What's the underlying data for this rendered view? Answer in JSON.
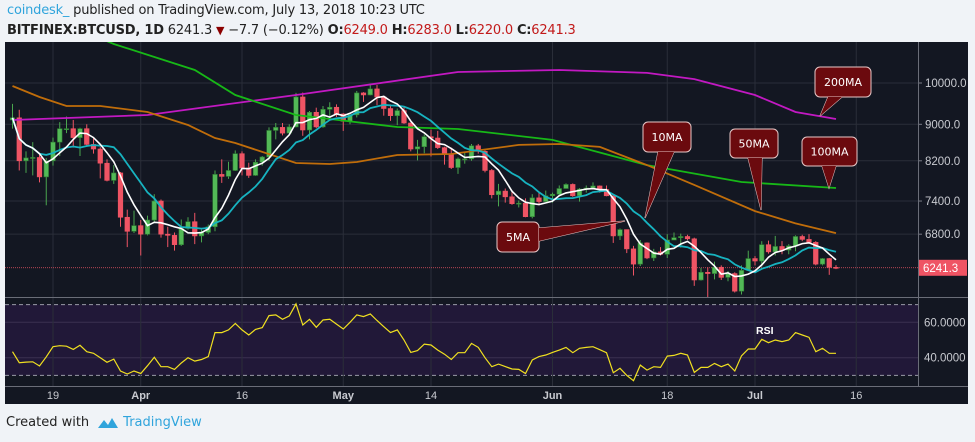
{
  "header": {
    "author": "coindesk_",
    "published": "published on TradingView.com, July 13, 2018 10:23 UTC",
    "symbol": "BITFINEX:BTCUSD, 1D",
    "last": "6241.3",
    "change": "−7.7 (−0.12%)",
    "o_label": "O:",
    "o": "6249.0",
    "h_label": "H:",
    "h": "6283.0",
    "l_label": "L:",
    "l": "6220.0",
    "c_label": "C:",
    "c": "6241.3"
  },
  "footer": {
    "created_with": "Created with",
    "brand": "TradingView"
  },
  "colors": {
    "bg": "#131722",
    "up": "#53b957",
    "down": "#ef5464",
    "ma5": "#ffffff",
    "ma10": "#17b3c0",
    "ma50": "#c06d0a",
    "ma100": "#17b817",
    "ma200": "#c219c2",
    "rsi": "#f0e020",
    "rsi_band": "#211838",
    "callout": "#6b0a0e",
    "last_price": "#ef5464"
  },
  "chart_data": {
    "type": "candlestick",
    "y_scale": "log",
    "y_ticks": [
      "10000.0",
      "9000.0",
      "8200.0",
      "7400.0",
      "6800.0"
    ],
    "y_tick_values": [
      10000,
      9000,
      8200,
      7400,
      6800
    ],
    "last_price_label": "6241.3",
    "x_ticks": [
      {
        "date": "03-19",
        "label": "19",
        "bold": false
      },
      {
        "date": "04-01",
        "label": "Apr",
        "bold": true
      },
      {
        "date": "04-16",
        "label": "16",
        "bold": false
      },
      {
        "date": "05-01",
        "label": "May",
        "bold": true
      },
      {
        "date": "05-14",
        "label": "14",
        "bold": false
      },
      {
        "date": "06-01",
        "label": "Jun",
        "bold": true
      },
      {
        "date": "06-18",
        "label": "18",
        "bold": false
      },
      {
        "date": "07-01",
        "label": "Jul",
        "bold": true
      },
      {
        "date": "07-16",
        "label": "16",
        "bold": false
      }
    ],
    "candles": [
      [
        "03-13",
        9100,
        9480,
        8900,
        9150
      ],
      [
        "03-14",
        9150,
        9340,
        8000,
        8200
      ],
      [
        "03-15",
        8200,
        8400,
        7950,
        8260
      ],
      [
        "03-16",
        8260,
        8600,
        7900,
        8270
      ],
      [
        "03-17",
        8270,
        8350,
        7760,
        7870
      ],
      [
        "03-18",
        7870,
        8260,
        7320,
        8200
      ],
      [
        "03-19",
        8200,
        8700,
        8100,
        8600
      ],
      [
        "03-20",
        8600,
        9050,
        8300,
        8900
      ],
      [
        "03-21",
        8900,
        9180,
        8800,
        8900
      ],
      [
        "03-22",
        8900,
        9100,
        8480,
        8700
      ],
      [
        "03-23",
        8700,
        8920,
        8300,
        8900
      ],
      [
        "03-24",
        8900,
        9000,
        8500,
        8550
      ],
      [
        "03-25",
        8550,
        8680,
        8350,
        8450
      ],
      [
        "03-26",
        8450,
        8490,
        7840,
        8150
      ],
      [
        "03-27",
        8150,
        8230,
        7780,
        7800
      ],
      [
        "03-28",
        7800,
        8110,
        7730,
        7950
      ],
      [
        "03-29",
        7950,
        7970,
        6930,
        7100
      ],
      [
        "03-30",
        7100,
        7240,
        6580,
        6850
      ],
      [
        "03-31",
        6850,
        7220,
        6820,
        6950
      ],
      [
        "04-01",
        6950,
        7050,
        6440,
        6800
      ],
      [
        "04-02",
        6800,
        7130,
        6780,
        7050
      ],
      [
        "04-03",
        7050,
        7530,
        7010,
        7400
      ],
      [
        "04-04",
        7400,
        7430,
        6740,
        6800
      ],
      [
        "04-05",
        6800,
        6930,
        6580,
        6780
      ],
      [
        "04-06",
        6780,
        6830,
        6520,
        6620
      ],
      [
        "04-07",
        6620,
        7060,
        6600,
        6900
      ],
      [
        "04-08",
        6900,
        7100,
        6880,
        7020
      ],
      [
        "04-09",
        7020,
        7180,
        6630,
        6770
      ],
      [
        "04-10",
        6770,
        6880,
        6660,
        6830
      ],
      [
        "04-11",
        6830,
        6970,
        6800,
        6930
      ],
      [
        "04-12",
        6930,
        8000,
        6850,
        7920
      ],
      [
        "04-13",
        7920,
        8230,
        7750,
        7880
      ],
      [
        "04-14",
        7880,
        8180,
        7830,
        8000
      ],
      [
        "04-15",
        8000,
        8420,
        7990,
        8350
      ],
      [
        "04-16",
        8350,
        8400,
        7900,
        8050
      ],
      [
        "04-17",
        8050,
        8160,
        7850,
        7900
      ],
      [
        "04-18",
        7900,
        8230,
        7890,
        8170
      ],
      [
        "04-19",
        8170,
        8300,
        8100,
        8280
      ],
      [
        "04-20",
        8280,
        8930,
        8200,
        8860
      ],
      [
        "04-21",
        8860,
        9030,
        8660,
        8930
      ],
      [
        "04-22",
        8930,
        9030,
        8750,
        8800
      ],
      [
        "04-23",
        8800,
        9000,
        8790,
        8940
      ],
      [
        "04-24",
        8940,
        9750,
        8930,
        9650
      ],
      [
        "04-25",
        9650,
        9760,
        8740,
        8870
      ],
      [
        "04-26",
        8870,
        9310,
        8660,
        9280
      ],
      [
        "04-27",
        9280,
        9390,
        8910,
        8940
      ],
      [
        "04-28",
        8940,
        9430,
        8920,
        9350
      ],
      [
        "04-29",
        9350,
        9520,
        9180,
        9400
      ],
      [
        "04-30",
        9400,
        9470,
        9170,
        9240
      ],
      [
        "05-01",
        9240,
        9260,
        8850,
        9070
      ],
      [
        "05-02",
        9070,
        9260,
        9000,
        9220
      ],
      [
        "05-03",
        9220,
        9800,
        9160,
        9750
      ],
      [
        "05-04",
        9750,
        9770,
        9530,
        9700
      ],
      [
        "05-05",
        9700,
        9980,
        9690,
        9850
      ],
      [
        "05-06",
        9850,
        9950,
        9450,
        9650
      ],
      [
        "05-07",
        9650,
        9660,
        9200,
        9370
      ],
      [
        "05-08",
        9370,
        9470,
        9080,
        9200
      ],
      [
        "05-09",
        9200,
        9370,
        8980,
        9320
      ],
      [
        "05-10",
        9320,
        9400,
        9010,
        9030
      ],
      [
        "05-11",
        9030,
        9040,
        8400,
        8450
      ],
      [
        "05-12",
        8450,
        8650,
        8210,
        8500
      ],
      [
        "05-13",
        8500,
        8770,
        8360,
        8720
      ],
      [
        "05-14",
        8720,
        8880,
        8290,
        8690
      ],
      [
        "05-15",
        8690,
        8850,
        8450,
        8480
      ],
      [
        "05-16",
        8480,
        8500,
        8120,
        8340
      ],
      [
        "05-17",
        8340,
        8480,
        8030,
        8060
      ],
      [
        "05-18",
        8060,
        8270,
        7930,
        8240
      ],
      [
        "05-19",
        8240,
        8390,
        8140,
        8240
      ],
      [
        "05-20",
        8240,
        8560,
        8200,
        8520
      ],
      [
        "05-21",
        8520,
        8560,
        8350,
        8400
      ],
      [
        "05-22",
        8400,
        8420,
        7960,
        8000
      ],
      [
        "05-23",
        8000,
        8030,
        7450,
        7520
      ],
      [
        "05-24",
        7520,
        7730,
        7300,
        7590
      ],
      [
        "05-25",
        7590,
        7640,
        7370,
        7480
      ],
      [
        "05-26",
        7480,
        7610,
        7330,
        7350
      ],
      [
        "05-27",
        7350,
        7410,
        7280,
        7360
      ],
      [
        "05-28",
        7360,
        7450,
        7100,
        7110
      ],
      [
        "05-29",
        7110,
        7530,
        7080,
        7460
      ],
      [
        "05-30",
        7460,
        7560,
        7320,
        7390
      ],
      [
        "05-31",
        7390,
        7600,
        7380,
        7500
      ],
      [
        "06-01",
        7500,
        7560,
        7370,
        7530
      ],
      [
        "06-02",
        7530,
        7700,
        7500,
        7640
      ],
      [
        "06-03",
        7640,
        7740,
        7640,
        7720
      ],
      [
        "06-04",
        7720,
        7740,
        7480,
        7500
      ],
      [
        "06-05",
        7500,
        7650,
        7390,
        7630
      ],
      [
        "06-06",
        7630,
        7700,
        7560,
        7650
      ],
      [
        "06-07",
        7650,
        7760,
        7650,
        7690
      ],
      [
        "06-08",
        7690,
        7700,
        7560,
        7620
      ],
      [
        "06-09",
        7620,
        7700,
        7490,
        7500
      ],
      [
        "06-10",
        7500,
        7500,
        6650,
        6770
      ],
      [
        "06-11",
        6770,
        6900,
        6700,
        6880
      ],
      [
        "06-12",
        6880,
        6880,
        6480,
        6550
      ],
      [
        "06-13",
        6550,
        6600,
        6120,
        6300
      ],
      [
        "06-14",
        6300,
        6700,
        6270,
        6650
      ],
      [
        "06-15",
        6650,
        6660,
        6380,
        6400
      ],
      [
        "06-16",
        6400,
        6550,
        6350,
        6500
      ],
      [
        "06-17",
        6500,
        6580,
        6440,
        6460
      ],
      [
        "06-18",
        6460,
        6800,
        6400,
        6700
      ],
      [
        "06-19",
        6700,
        6830,
        6700,
        6740
      ],
      [
        "06-20",
        6740,
        6810,
        6570,
        6760
      ],
      [
        "06-21",
        6760,
        6790,
        6700,
        6720
      ],
      [
        "06-22",
        6720,
        6740,
        5960,
        6050
      ],
      [
        "06-23",
        6050,
        6240,
        6040,
        6170
      ],
      [
        "06-24",
        6170,
        6250,
        5760,
        6150
      ],
      [
        "06-25",
        6150,
        6340,
        6060,
        6250
      ],
      [
        "06-26",
        6250,
        6280,
        6050,
        6090
      ],
      [
        "06-27",
        6090,
        6190,
        6030,
        6150
      ],
      [
        "06-28",
        6150,
        6170,
        5860,
        5880
      ],
      [
        "06-29",
        5880,
        6280,
        5830,
        6200
      ],
      [
        "06-30",
        6200,
        6520,
        6190,
        6390
      ],
      [
        "07-01",
        6390,
        6430,
        6280,
        6350
      ],
      [
        "07-02",
        6350,
        6680,
        6260,
        6620
      ],
      [
        "07-03",
        6620,
        6690,
        6470,
        6500
      ],
      [
        "07-04",
        6500,
        6770,
        6440,
        6590
      ],
      [
        "07-05",
        6590,
        6680,
        6460,
        6530
      ],
      [
        "07-06",
        6530,
        6630,
        6460,
        6600
      ],
      [
        "07-07",
        6600,
        6780,
        6510,
        6760
      ],
      [
        "07-08",
        6760,
        6790,
        6680,
        6710
      ],
      [
        "07-09",
        6710,
        6800,
        6650,
        6660
      ],
      [
        "07-10",
        6660,
        6680,
        6280,
        6300
      ],
      [
        "07-11",
        6300,
        6400,
        6280,
        6390
      ],
      [
        "07-12",
        6390,
        6400,
        6130,
        6249
      ],
      [
        "07-13",
        6249,
        6283,
        6220,
        6241.3
      ]
    ],
    "ma200": [
      [
        "03-13",
        9099
      ],
      [
        "04-02",
        9216
      ],
      [
        "04-24",
        9698
      ],
      [
        "05-18",
        10285
      ],
      [
        "06-02",
        10337
      ],
      [
        "06-15",
        10260
      ],
      [
        "06-22",
        10100
      ],
      [
        "07-01",
        9698
      ],
      [
        "07-07",
        9287
      ],
      [
        "07-13",
        9123
      ]
    ],
    "ma100": [
      [
        "03-20",
        11700
      ],
      [
        "03-28",
        11046
      ],
      [
        "04-09",
        10337
      ],
      [
        "04-15",
        9698
      ],
      [
        "04-24",
        9216
      ],
      [
        "04-29",
        9123
      ],
      [
        "05-09",
        8939
      ],
      [
        "05-18",
        8893
      ],
      [
        "06-01",
        8650
      ],
      [
        "06-15",
        8110
      ],
      [
        "06-29",
        7768
      ],
      [
        "07-13",
        7650
      ]
    ],
    "ma50": [
      [
        "03-13",
        9924
      ],
      [
        "03-17",
        9649
      ],
      [
        "03-21",
        9430
      ],
      [
        "03-26",
        9430
      ],
      [
        "04-02",
        9287
      ],
      [
        "04-08",
        8985
      ],
      [
        "04-12",
        8692
      ],
      [
        "04-15",
        8581
      ],
      [
        "04-24",
        8154
      ],
      [
        "04-29",
        8133
      ],
      [
        "05-03",
        8175
      ],
      [
        "05-09",
        8322
      ],
      [
        "05-17",
        8344
      ],
      [
        "05-27",
        8539
      ],
      [
        "06-02",
        8560
      ],
      [
        "06-08",
        8495
      ],
      [
        "06-15",
        8110
      ],
      [
        "06-22",
        7710
      ],
      [
        "07-01",
        7213
      ],
      [
        "07-07",
        6990
      ],
      [
        "07-13",
        6819
      ]
    ],
    "rsi": {
      "label": "RSI",
      "y_ticks": [
        "60.0000",
        "40.0000"
      ],
      "y_tick_values": [
        60,
        40
      ],
      "bands": [
        70,
        30
      ],
      "values": [
        43.4,
        37.2,
        37.5,
        37.7,
        35.3,
        40.5,
        46.2,
        46.8,
        46.5,
        44.7,
        47,
        43.4,
        42.5,
        40,
        37.4,
        39.2,
        32.5,
        30.8,
        32.5,
        31.1,
        35.5,
        40.2,
        34.9,
        34.9,
        33.4,
        37,
        40,
        38.1,
        39,
        40.6,
        54.2,
        54.2,
        55.7,
        59.4,
        55.7,
        52.8,
        56,
        57,
        63.8,
        64.2,
        61.7,
        63.6,
        70.4,
        58.5,
        61.7,
        57.2,
        61.3,
        61.7,
        59,
        56.2,
        60,
        64.2,
        63.2,
        64.7,
        61,
        57.5,
        54.2,
        55.7,
        50,
        43,
        44,
        47.7,
        47.2,
        44.3,
        42,
        39,
        42.8,
        42.8,
        48.1,
        45.8,
        40,
        34.9,
        36.4,
        35,
        33.6,
        33.4,
        31.1,
        38.7,
        40.6,
        41.5,
        43,
        44.3,
        45.8,
        42.8,
        45.3,
        45.8,
        46.2,
        44.5,
        42.8,
        31.5,
        34,
        30,
        27,
        35.8,
        33,
        34.9,
        34.5,
        40.9,
        41.3,
        42.5,
        41.5,
        31.7,
        34.5,
        34.5,
        36.8,
        34.9,
        36.4,
        32.5,
        41.1,
        44.9,
        44.9,
        50.4,
        48.5,
        50,
        49.1,
        50,
        54.2,
        52.8,
        51.5,
        43.4,
        45.3,
        42.5,
        42.5
      ]
    },
    "annotations": [
      "200MA",
      "100MA",
      "50MA",
      "10MA",
      "5MA"
    ]
  }
}
